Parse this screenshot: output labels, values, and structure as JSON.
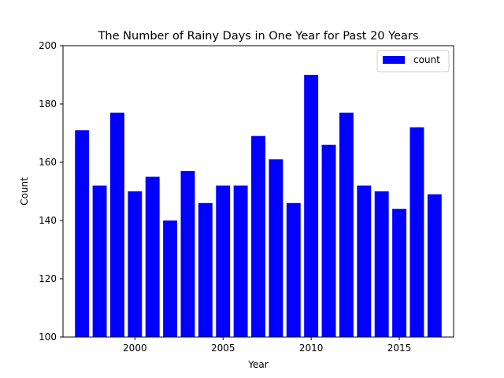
{
  "chart_data": {
    "type": "bar",
    "title": "The Number of Rainy Days in One Year for Past 20 Years",
    "xlabel": "Year",
    "ylabel": "Count",
    "x": [
      1997,
      1998,
      1999,
      2000,
      2001,
      2002,
      2003,
      2004,
      2005,
      2006,
      2007,
      2008,
      2009,
      2010,
      2011,
      2012,
      2013,
      2014,
      2015,
      2016,
      2017
    ],
    "series": [
      {
        "name": "count",
        "values": [
          171,
          152,
          177,
          150,
          155,
          140,
          157,
          146,
          152,
          152,
          169,
          161,
          146,
          190,
          166,
          177,
          152,
          150,
          144,
          172,
          149
        ],
        "color": "#0000ff"
      }
    ],
    "xlim": [
      1995.92,
      2018.08
    ],
    "ylim": [
      100,
      200
    ],
    "x_ticks": [
      2000,
      2005,
      2010,
      2015
    ],
    "x_tick_labels": [
      "2000",
      "2005",
      "2010",
      "2015"
    ],
    "y_ticks": [
      100,
      120,
      140,
      160,
      180,
      200
    ],
    "y_tick_labels": [
      "100",
      "120",
      "140",
      "160",
      "180",
      "200"
    ],
    "grid": false,
    "legend": {
      "placement": "top-right",
      "entries": [
        "count"
      ]
    }
  }
}
